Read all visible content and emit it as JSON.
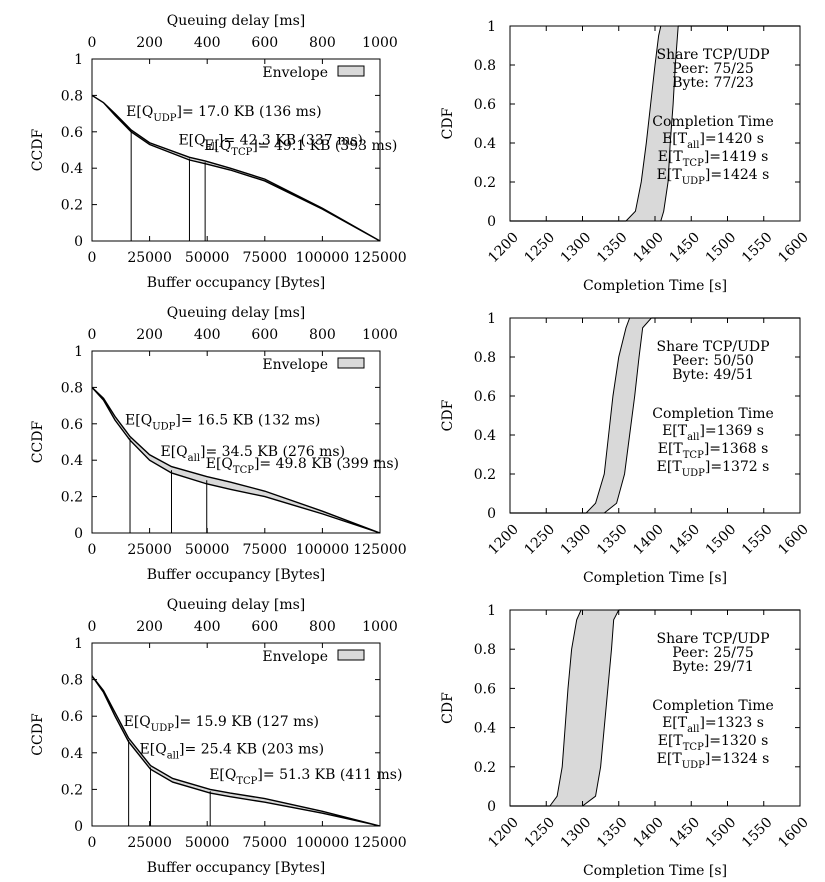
{
  "chart_data": [
    {
      "type": "line",
      "panel": "ccdf-75-25",
      "title": "",
      "xlabel": "Buffer occupancy [Bytes]",
      "x2label": "Queuing delay [ms]",
      "ylabel": "CCDF",
      "xlim": [
        0,
        125000
      ],
      "x2lim": [
        0,
        1000
      ],
      "ylim": [
        0,
        1
      ],
      "xticks": [
        0,
        25000,
        50000,
        75000,
        100000,
        125000
      ],
      "x2ticks": [
        0,
        200,
        400,
        600,
        800,
        1000
      ],
      "yticks": [
        0,
        0.2,
        0.4,
        0.6,
        0.8,
        1
      ],
      "legend": {
        "label": "Envelope",
        "position": "top-right"
      },
      "grid": false,
      "envelope": {
        "x": [
          0,
          5000,
          10000,
          17000,
          25000,
          42300,
          49100,
          60000,
          75000,
          100000,
          125000
        ],
        "upper": [
          0.8,
          0.76,
          0.7,
          0.61,
          0.54,
          0.46,
          0.44,
          0.4,
          0.34,
          0.18,
          0.0
        ],
        "lower": [
          0.8,
          0.76,
          0.69,
          0.6,
          0.53,
          0.445,
          0.425,
          0.39,
          0.33,
          0.175,
          0.0
        ]
      },
      "markers": [
        {
          "x": 17000,
          "y": 0.61,
          "text": {
            "pre": "E[Q",
            "sub": "UDP",
            "post": "]= 17.0 KB (136 ms)"
          }
        },
        {
          "x": 42300,
          "y": 0.453,
          "text": {
            "pre": "E[Q",
            "sub": "all",
            "post": "]= 42.3 KB (337 ms)"
          }
        },
        {
          "x": 49100,
          "y": 0.433,
          "text": {
            "pre": "E[Q",
            "sub": "TCP",
            "post": "]= 49.1 KB (393 ms)"
          }
        }
      ]
    },
    {
      "type": "area",
      "panel": "cdf-75-25",
      "title": "",
      "xlabel": "Completion Time [s]",
      "ylabel": "CDF",
      "xlim": [
        1200,
        1600
      ],
      "ylim": [
        0,
        1
      ],
      "xticks": [
        1200,
        1250,
        1300,
        1350,
        1400,
        1450,
        1500,
        1550,
        1600
      ],
      "yticks": [
        0,
        0.2,
        0.4,
        0.6,
        0.8,
        1
      ],
      "grid": false,
      "band": {
        "left": [
          [
            1360,
            0
          ],
          [
            1373,
            0.05
          ],
          [
            1381,
            0.2
          ],
          [
            1388,
            0.4
          ],
          [
            1394,
            0.6
          ],
          [
            1400,
            0.8
          ],
          [
            1405,
            0.95
          ],
          [
            1408,
            1
          ]
        ],
        "right": [
          [
            1408,
            0
          ],
          [
            1412,
            0.05
          ],
          [
            1418,
            0.2
          ],
          [
            1421,
            0.4
          ],
          [
            1425,
            0.6
          ],
          [
            1428,
            0.8
          ],
          [
            1431,
            0.95
          ],
          [
            1432,
            1
          ]
        ]
      },
      "share": {
        "heading": "Share TCP/UDP",
        "peer": "Peer: 75/25",
        "byte": "Byte: 77/23"
      },
      "completion": {
        "heading": "Completion Time",
        "lines": [
          {
            "pre": "E[T",
            "sub": "all",
            "post": "]=1420 s"
          },
          {
            "pre": "E[T",
            "sub": "TCP",
            "post": "]=1419 s"
          },
          {
            "pre": "E[T",
            "sub": "UDP",
            "post": "]=1424 s"
          }
        ]
      }
    },
    {
      "type": "line",
      "panel": "ccdf-50-50",
      "title": "",
      "xlabel": "Buffer occupancy [Bytes]",
      "x2label": "Queuing delay [ms]",
      "ylabel": "CCDF",
      "xlim": [
        0,
        125000
      ],
      "x2lim": [
        0,
        1000
      ],
      "ylim": [
        0,
        1
      ],
      "xticks": [
        0,
        25000,
        50000,
        75000,
        100000,
        125000
      ],
      "x2ticks": [
        0,
        200,
        400,
        600,
        800,
        1000
      ],
      "yticks": [
        0,
        0.2,
        0.4,
        0.6,
        0.8,
        1
      ],
      "legend": {
        "label": "Envelope",
        "position": "top-right"
      },
      "grid": false,
      "envelope": {
        "x": [
          0,
          5000,
          10000,
          16500,
          25000,
          34500,
          49800,
          60000,
          75000,
          100000,
          125000
        ],
        "upper": [
          0.8,
          0.74,
          0.64,
          0.53,
          0.43,
          0.365,
          0.31,
          0.28,
          0.23,
          0.12,
          0.0
        ],
        "lower": [
          0.8,
          0.73,
          0.62,
          0.51,
          0.4,
          0.33,
          0.27,
          0.24,
          0.2,
          0.105,
          0.0
        ]
      },
      "markers": [
        {
          "x": 16500,
          "y": 0.52,
          "text": {
            "pre": "E[Q",
            "sub": "UDP",
            "post": "]= 16.5 KB (132 ms)"
          }
        },
        {
          "x": 34500,
          "y": 0.345,
          "text": {
            "pre": "E[Q",
            "sub": "all",
            "post": "]= 34.5 KB (276 ms)"
          }
        },
        {
          "x": 49800,
          "y": 0.29,
          "text": {
            "pre": "E[Q",
            "sub": "TCP",
            "post": "]= 49.8 KB (399 ms)"
          }
        }
      ]
    },
    {
      "type": "area",
      "panel": "cdf-50-50",
      "title": "",
      "xlabel": "Completion Time [s]",
      "ylabel": "CDF",
      "xlim": [
        1200,
        1600
      ],
      "ylim": [
        0,
        1
      ],
      "xticks": [
        1200,
        1250,
        1300,
        1350,
        1400,
        1450,
        1500,
        1550,
        1600
      ],
      "yticks": [
        0,
        0.2,
        0.4,
        0.6,
        0.8,
        1
      ],
      "grid": false,
      "band": {
        "left": [
          [
            1305,
            0
          ],
          [
            1318,
            0.05
          ],
          [
            1330,
            0.2
          ],
          [
            1336,
            0.4
          ],
          [
            1342,
            0.6
          ],
          [
            1350,
            0.8
          ],
          [
            1360,
            0.95
          ],
          [
            1365,
            1
          ]
        ],
        "right": [
          [
            1330,
            0
          ],
          [
            1347,
            0.05
          ],
          [
            1358,
            0.2
          ],
          [
            1365,
            0.4
          ],
          [
            1372,
            0.6
          ],
          [
            1378,
            0.8
          ],
          [
            1383,
            0.95
          ],
          [
            1395,
            1
          ]
        ]
      },
      "share": {
        "heading": "Share TCP/UDP",
        "peer": "Peer: 50/50",
        "byte": "Byte: 49/51"
      },
      "completion": {
        "heading": "Completion Time",
        "lines": [
          {
            "pre": "E[T",
            "sub": "all",
            "post": "]=1369 s"
          },
          {
            "pre": "E[T",
            "sub": "TCP",
            "post": "]=1368 s"
          },
          {
            "pre": "E[T",
            "sub": "UDP",
            "post": "]=1372 s"
          }
        ]
      }
    },
    {
      "type": "line",
      "panel": "ccdf-25-75",
      "title": "",
      "xlabel": "Buffer occupancy [Bytes]",
      "x2label": "Queuing delay [ms]",
      "ylabel": "CCDF",
      "xlim": [
        0,
        125000
      ],
      "x2lim": [
        0,
        1000
      ],
      "ylim": [
        0,
        1
      ],
      "xticks": [
        0,
        25000,
        50000,
        75000,
        100000,
        125000
      ],
      "x2ticks": [
        0,
        200,
        400,
        600,
        800,
        1000
      ],
      "yticks": [
        0,
        0.2,
        0.4,
        0.6,
        0.8,
        1
      ],
      "legend": {
        "label": "Envelope",
        "position": "top-right"
      },
      "grid": false,
      "envelope": {
        "x": [
          0,
          5000,
          10000,
          15900,
          25400,
          35000,
          51300,
          60000,
          75000,
          100000,
          125000
        ],
        "upper": [
          0.82,
          0.74,
          0.62,
          0.48,
          0.33,
          0.26,
          0.2,
          0.18,
          0.15,
          0.08,
          0.0
        ],
        "lower": [
          0.82,
          0.73,
          0.6,
          0.46,
          0.31,
          0.24,
          0.18,
          0.16,
          0.13,
          0.07,
          0.0
        ]
      },
      "markers": [
        {
          "x": 15900,
          "y": 0.47,
          "text": {
            "pre": "E[Q",
            "sub": "UDP",
            "post": "]= 15.9 KB (127 ms)"
          }
        },
        {
          "x": 25400,
          "y": 0.32,
          "text": {
            "pre": "E[Q",
            "sub": "all",
            "post": "]= 25.4 KB (203 ms)"
          }
        },
        {
          "x": 51300,
          "y": 0.19,
          "text": {
            "pre": "E[Q",
            "sub": "TCP",
            "post": "]= 51.3 KB (411 ms)"
          }
        }
      ]
    },
    {
      "type": "area",
      "panel": "cdf-25-75",
      "title": "",
      "xlabel": "Completion Time [s]",
      "ylabel": "CDF",
      "xlim": [
        1200,
        1600
      ],
      "ylim": [
        0,
        1
      ],
      "xticks": [
        1200,
        1250,
        1300,
        1350,
        1400,
        1450,
        1500,
        1550,
        1600
      ],
      "yticks": [
        0,
        0.2,
        0.4,
        0.6,
        0.8,
        1
      ],
      "grid": false,
      "band": {
        "left": [
          [
            1255,
            0
          ],
          [
            1265,
            0.05
          ],
          [
            1272,
            0.2
          ],
          [
            1276,
            0.4
          ],
          [
            1280,
            0.6
          ],
          [
            1285,
            0.8
          ],
          [
            1292,
            0.95
          ],
          [
            1298,
            1
          ]
        ],
        "right": [
          [
            1300,
            0
          ],
          [
            1318,
            0.05
          ],
          [
            1325,
            0.2
          ],
          [
            1330,
            0.4
          ],
          [
            1335,
            0.6
          ],
          [
            1340,
            0.8
          ],
          [
            1343,
            0.95
          ],
          [
            1350,
            1
          ]
        ]
      },
      "share": {
        "heading": "Share TCP/UDP",
        "peer": "Peer: 25/75",
        "byte": "Byte: 29/71"
      },
      "completion": {
        "heading": "Completion Time",
        "lines": [
          {
            "pre": "E[T",
            "sub": "all",
            "post": "]=1323 s"
          },
          {
            "pre": "E[T",
            "sub": "TCP",
            "post": "]=1320 s"
          },
          {
            "pre": "E[T",
            "sub": "UDP",
            "post": "]=1324 s"
          }
        ]
      }
    }
  ]
}
